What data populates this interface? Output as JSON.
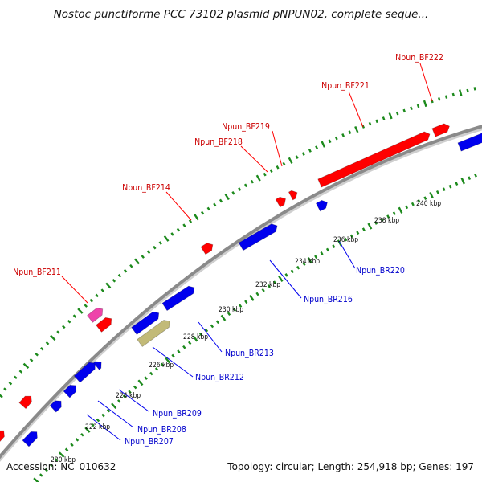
{
  "title": "Nostoc punctiforme PCC 73102 plasmid pNPUN02, complete seque...",
  "footer": {
    "accession": "Accession: NC_010632",
    "summary": "Topology: circular; Length: 254,918 bp; Genes: 197"
  },
  "colors": {
    "backbone": "#8a8a8a",
    "forward": "#ff0000",
    "reverse": "#0000ee",
    "tick": "#1c8a1c",
    "forward_label": "#cc0000",
    "reverse_label": "#0000cc",
    "pink": "#ee44aa",
    "olive": "#c2ba78"
  },
  "scale_labels": [
    "220 kbp",
    "222 kbp",
    "224 kbp",
    "226 kbp",
    "228 kbp",
    "230 kbp",
    "232 kbp",
    "234 kbp",
    "236 kbp",
    "238 kbp",
    "240 kbp"
  ],
  "forward_labels": [
    "Npun_BF211",
    "Npun_BF214",
    "Npun_BF218",
    "Npun_BF219",
    "Npun_BF221",
    "Npun_BF222"
  ],
  "reverse_labels": [
    "Npun_BR207",
    "Npun_BR208",
    "Npun_BR209",
    "Npun_BR212",
    "Npun_BR213",
    "Npun_BR216",
    "Npun_BR220"
  ]
}
